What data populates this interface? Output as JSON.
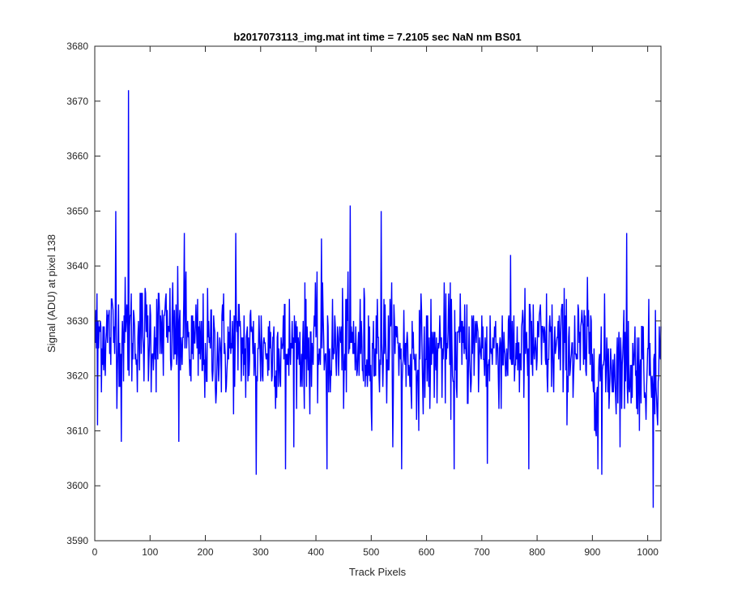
{
  "chart_data": {
    "type": "line",
    "title": "b2017073113_img.mat int time = 7.2105 sec  NaN nm BS01",
    "xlabel": "Track Pixels",
    "ylabel": "Signal (ADU) at pixel 138",
    "xlim": [
      0,
      1024
    ],
    "ylim": [
      3590,
      3680
    ],
    "xticks": [
      0,
      100,
      200,
      300,
      400,
      500,
      600,
      700,
      800,
      900,
      1000
    ],
    "yticks": [
      3590,
      3600,
      3610,
      3620,
      3630,
      3640,
      3650,
      3660,
      3670,
      3680
    ],
    "grid": false,
    "legend": "none",
    "series": [
      {
        "color": "#0000ff",
        "x_start": 1,
        "x_step": 1,
        "baseline": 3625,
        "n_points": 1024,
        "peaks": [
          {
            "x": 5,
            "y": 3611
          },
          {
            "x": 38,
            "y": 3650
          },
          {
            "x": 48,
            "y": 3608
          },
          {
            "x": 61,
            "y": 3672
          },
          {
            "x": 152,
            "y": 3608
          },
          {
            "x": 162,
            "y": 3646
          },
          {
            "x": 255,
            "y": 3646
          },
          {
            "x": 292,
            "y": 3602
          },
          {
            "x": 345,
            "y": 3603
          },
          {
            "x": 410,
            "y": 3645
          },
          {
            "x": 420,
            "y": 3603
          },
          {
            "x": 462,
            "y": 3651
          },
          {
            "x": 518,
            "y": 3650
          },
          {
            "x": 555,
            "y": 3603
          },
          {
            "x": 650,
            "y": 3603
          },
          {
            "x": 710,
            "y": 3604
          },
          {
            "x": 785,
            "y": 3603
          },
          {
            "x": 910,
            "y": 3603
          },
          {
            "x": 917,
            "y": 3602
          },
          {
            "x": 962,
            "y": 3646
          },
          {
            "x": 1010,
            "y": 3596
          },
          {
            "x": 1014,
            "y": 3632
          }
        ]
      }
    ]
  }
}
